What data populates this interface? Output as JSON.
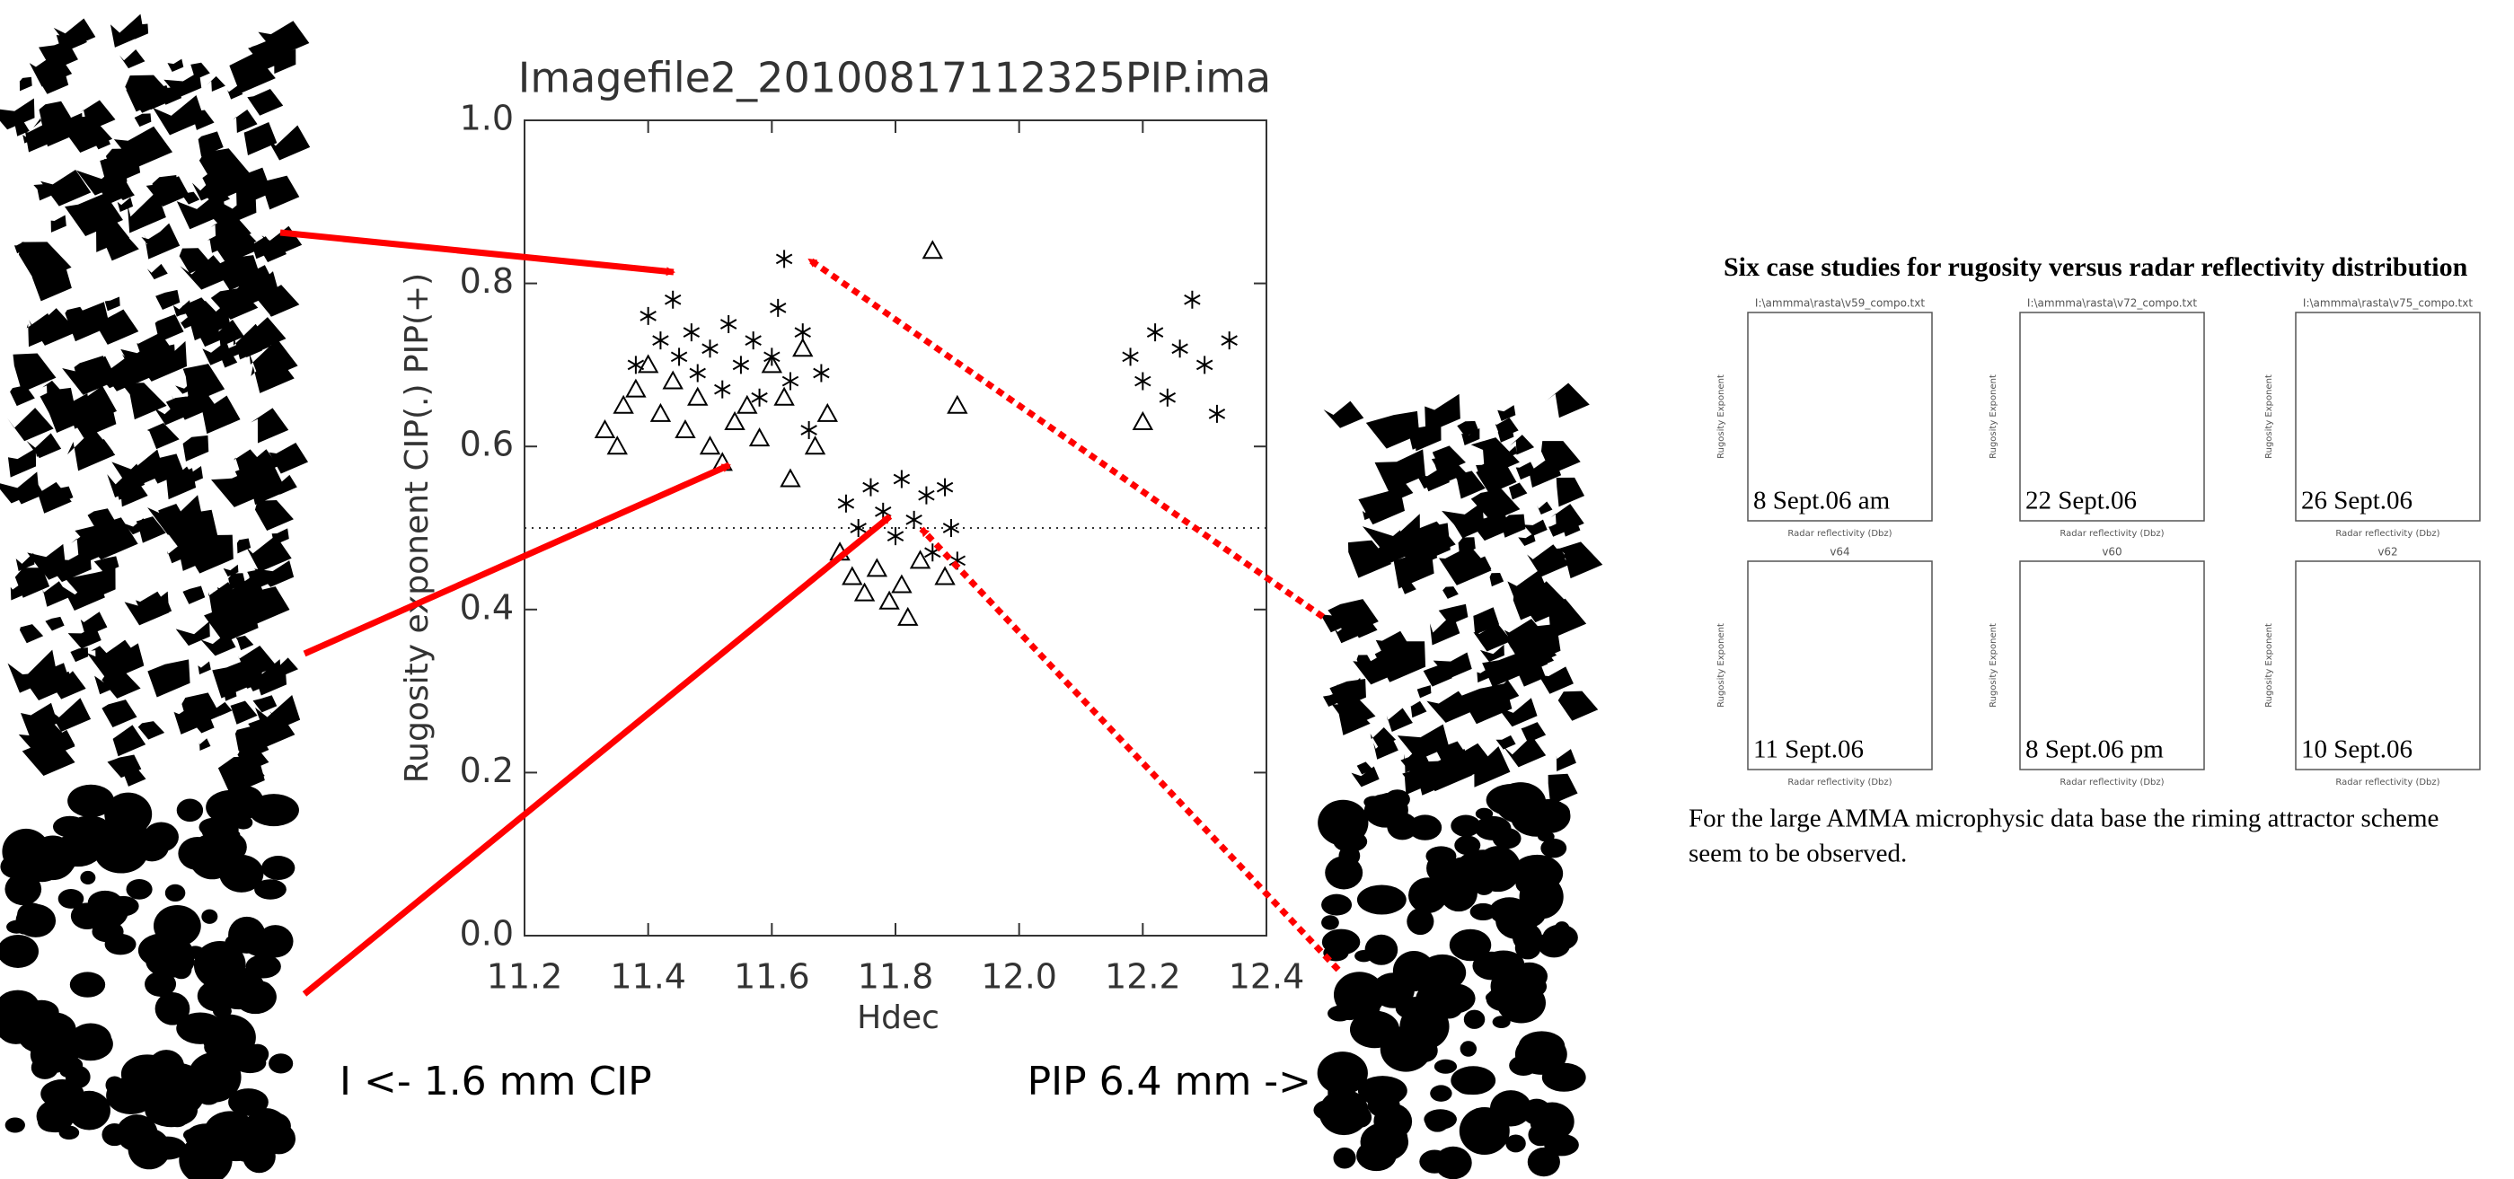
{
  "chart_data": {
    "type": "scatter",
    "title": "Imagefile2_20100817112325PIP.ima",
    "x_label": "Hdec",
    "y_label": "Rugosity exponent CIP(.) PIP(+)",
    "xlim": [
      11.2,
      12.4
    ],
    "ylim": [
      0,
      1
    ],
    "xticks": [
      11.2,
      11.4,
      11.6,
      11.8,
      {
        "value": 12,
        "label": "12.0"
      },
      12.2,
      12.4
    ],
    "yticks": [
      {
        "value": 0,
        "label": "0.0"
      },
      0.2,
      0.4,
      0.6,
      0.8,
      {
        "value": 1,
        "label": "1.0"
      }
    ],
    "reference_line": 0.5,
    "series": [
      {
        "marker": "asterisk",
        "color": "#000000",
        "x": [
          11.38,
          11.4,
          11.42,
          11.44,
          11.45,
          11.47,
          11.48,
          11.5,
          11.52,
          11.53,
          11.55,
          11.57,
          11.58,
          11.6,
          11.61,
          11.62,
          11.63,
          11.65,
          11.66,
          11.68,
          11.72,
          11.74,
          11.76,
          11.78,
          11.8,
          11.81,
          11.83,
          11.85,
          11.86,
          11.88,
          11.89,
          11.9,
          12.18,
          12.2,
          12.22,
          12.24,
          12.26,
          12.28,
          12.3,
          12.32,
          12.34
        ],
        "y": [
          0.7,
          0.76,
          0.73,
          0.78,
          0.71,
          0.74,
          0.69,
          0.72,
          0.67,
          0.75,
          0.7,
          0.73,
          0.66,
          0.71,
          0.77,
          0.83,
          0.68,
          0.74,
          0.62,
          0.69,
          0.53,
          0.5,
          0.55,
          0.52,
          0.49,
          0.56,
          0.51,
          0.54,
          0.47,
          0.55,
          0.5,
          0.46,
          0.71,
          0.68,
          0.74,
          0.66,
          0.72,
          0.78,
          0.7,
          0.64,
          0.73
        ]
      },
      {
        "marker": "triangle",
        "color": "#000000",
        "x": [
          11.33,
          11.35,
          11.36,
          11.38,
          11.4,
          11.42,
          11.44,
          11.46,
          11.48,
          11.5,
          11.52,
          11.54,
          11.56,
          11.58,
          11.6,
          11.62,
          11.63,
          11.65,
          11.67,
          11.69,
          11.71,
          11.73,
          11.75,
          11.77,
          11.79,
          11.81,
          11.82,
          11.84,
          11.86,
          11.88,
          11.9,
          12.2
        ],
        "y": [
          0.62,
          0.6,
          0.65,
          0.67,
          0.7,
          0.64,
          0.68,
          0.62,
          0.66,
          0.6,
          0.58,
          0.63,
          0.65,
          0.61,
          0.7,
          0.66,
          0.56,
          0.72,
          0.6,
          0.64,
          0.47,
          0.44,
          0.42,
          0.45,
          0.41,
          0.43,
          0.39,
          0.46,
          0.84,
          0.44,
          0.65,
          0.63
        ]
      }
    ]
  },
  "captions": {
    "cip": "I <- 1.6 mm CIP",
    "pip": "PIP 6.4 mm  -> I"
  },
  "case_studies": {
    "title": "Six case studies for rugosity versus radar reflectivity distribution",
    "y_label": "Rugosity Exponent",
    "x_label": "Radar reflectivity (Dbz)",
    "panels": [
      {
        "file": "I:\\ammma\\rasta\\v59_compo.txt",
        "label": "8 Sept.06 am"
      },
      {
        "file": "I:\\ammma\\rasta\\v72_compo.txt",
        "label": "22 Sept.06"
      },
      {
        "file": "I:\\ammma\\rasta\\v75_compo.txt",
        "label": "26 Sept.06"
      },
      {
        "file": "v64",
        "label": "11 Sept.06"
      },
      {
        "file": "v60",
        "label": "8 Sept.06  pm"
      },
      {
        "file": "v62",
        "label": "10 Sept.06"
      }
    ],
    "caption": [
      "For the large AMMA microphysic data base the riming attractor scheme",
      "seem to be observed."
    ]
  }
}
